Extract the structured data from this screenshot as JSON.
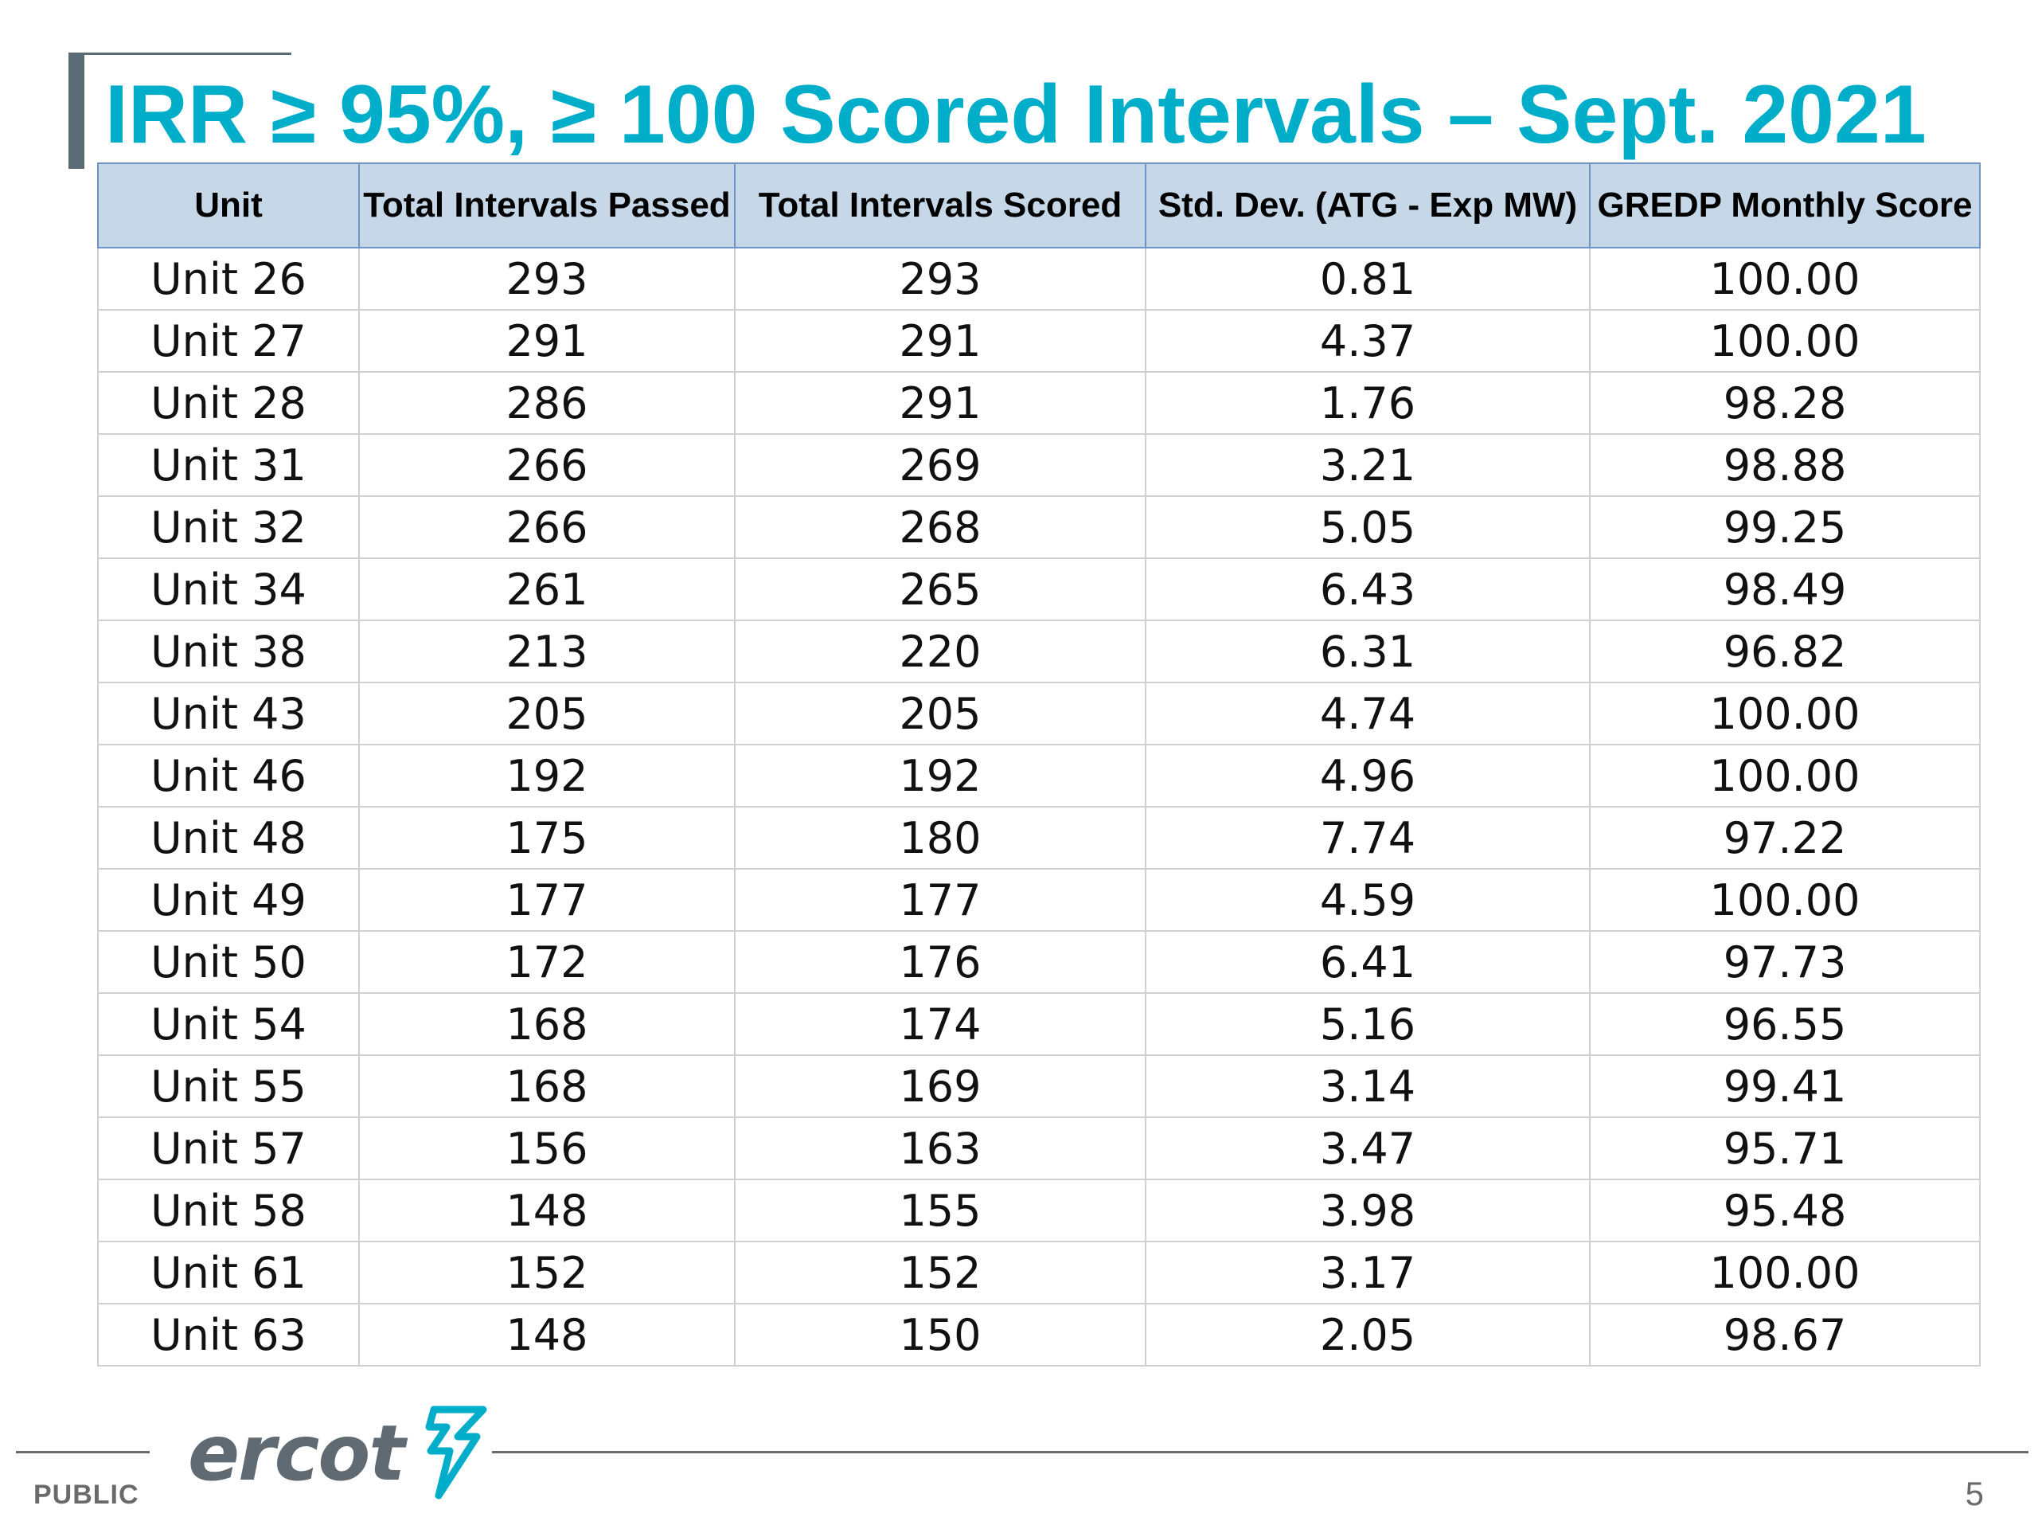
{
  "slide": {
    "title": "IRR ≥ 95%, ≥ 100 Scored Intervals – Sept. 2021",
    "page_number": "5",
    "classification": "PUBLIC",
    "logo_text": "ercot"
  },
  "colors": {
    "title": "#00aeca",
    "header_fill": "#c6d7e8",
    "header_border": "#6f93c5",
    "accent_bar": "#5a6b76",
    "logo": "#5f6a72",
    "logo_mark": "#00aeca"
  },
  "table": {
    "headers": [
      "Unit",
      "Total Intervals Passed",
      "Total Intervals Scored",
      "Std. Dev. (ATG - Exp MW)",
      "GREDP Monthly Score"
    ],
    "rows": [
      [
        "Unit 26",
        "293",
        "293",
        "0.81",
        "100.00"
      ],
      [
        "Unit 27",
        "291",
        "291",
        "4.37",
        "100.00"
      ],
      [
        "Unit 28",
        "286",
        "291",
        "1.76",
        "98.28"
      ],
      [
        "Unit 31",
        "266",
        "269",
        "3.21",
        "98.88"
      ],
      [
        "Unit 32",
        "266",
        "268",
        "5.05",
        "99.25"
      ],
      [
        "Unit 34",
        "261",
        "265",
        "6.43",
        "98.49"
      ],
      [
        "Unit 38",
        "213",
        "220",
        "6.31",
        "96.82"
      ],
      [
        "Unit 43",
        "205",
        "205",
        "4.74",
        "100.00"
      ],
      [
        "Unit 46",
        "192",
        "192",
        "4.96",
        "100.00"
      ],
      [
        "Unit 48",
        "175",
        "180",
        "7.74",
        "97.22"
      ],
      [
        "Unit 49",
        "177",
        "177",
        "4.59",
        "100.00"
      ],
      [
        "Unit 50",
        "172",
        "176",
        "6.41",
        "97.73"
      ],
      [
        "Unit 54",
        "168",
        "174",
        "5.16",
        "96.55"
      ],
      [
        "Unit 55",
        "168",
        "169",
        "3.14",
        "99.41"
      ],
      [
        "Unit 57",
        "156",
        "163",
        "3.47",
        "95.71"
      ],
      [
        "Unit 58",
        "148",
        "155",
        "3.98",
        "95.48"
      ],
      [
        "Unit 61",
        "152",
        "152",
        "3.17",
        "100.00"
      ],
      [
        "Unit 63",
        "148",
        "150",
        "2.05",
        "98.67"
      ]
    ]
  }
}
